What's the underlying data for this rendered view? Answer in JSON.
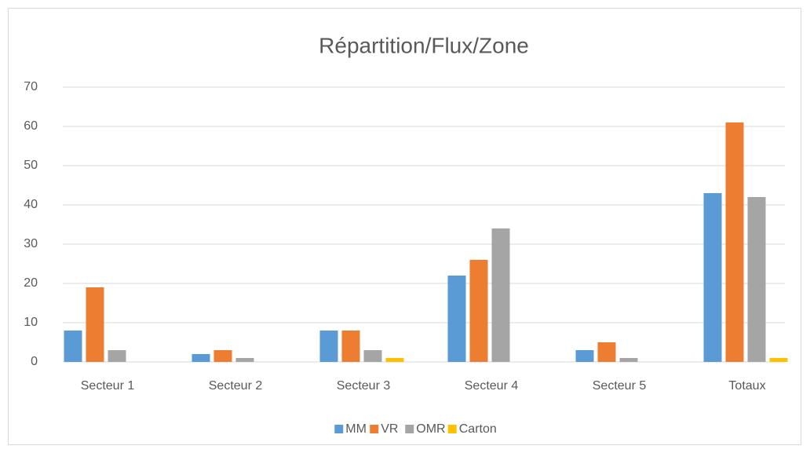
{
  "chart_data": {
    "type": "bar",
    "title": "Répartition/Flux/Zone",
    "categories": [
      "Secteur 1",
      "Secteur 2",
      "Secteur 3",
      "Secteur 4",
      "Secteur 5",
      "Totaux"
    ],
    "series": [
      {
        "name": "MM",
        "color": "#5b9bd5",
        "values": [
          8,
          2,
          8,
          22,
          3,
          43
        ]
      },
      {
        "name": "VR",
        "color": "#ed7d31",
        "values": [
          19,
          3,
          8,
          26,
          5,
          61
        ]
      },
      {
        "name": "OMR",
        "color": "#a5a5a5",
        "values": [
          3,
          1,
          3,
          34,
          1,
          42
        ]
      },
      {
        "name": "Carton",
        "color": "#ffc000",
        "values": [
          0,
          0,
          1,
          0,
          0,
          1
        ]
      }
    ],
    "ylim": [
      0,
      70
    ],
    "yticks": [
      0,
      10,
      20,
      30,
      40,
      50,
      60,
      70
    ],
    "grid": true,
    "legend": "bottom"
  }
}
